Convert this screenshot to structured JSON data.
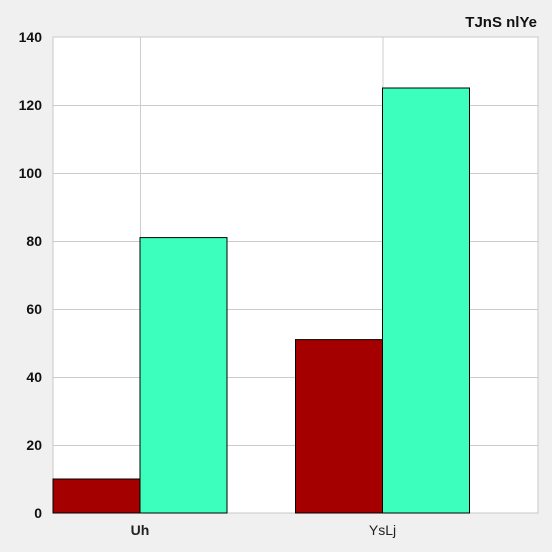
{
  "chart_data": {
    "type": "bar",
    "title": "TJnS nlYe",
    "xlabel": "",
    "ylabel": "",
    "categories": [
      "Uh",
      "YsLj"
    ],
    "series": [
      {
        "values": [
          10,
          51
        ],
        "color": "#a50000"
      },
      {
        "values": [
          81,
          125
        ],
        "color": "#3cffbe"
      }
    ],
    "ylim": [
      0,
      140
    ],
    "yticks": [
      0,
      20,
      40,
      60,
      80,
      100,
      120,
      140
    ],
    "grid": true,
    "legend": "none",
    "colors": {
      "plot_background": "#ffffff",
      "page_background": "#f0f0f0",
      "grid": "#cccccc"
    }
  }
}
